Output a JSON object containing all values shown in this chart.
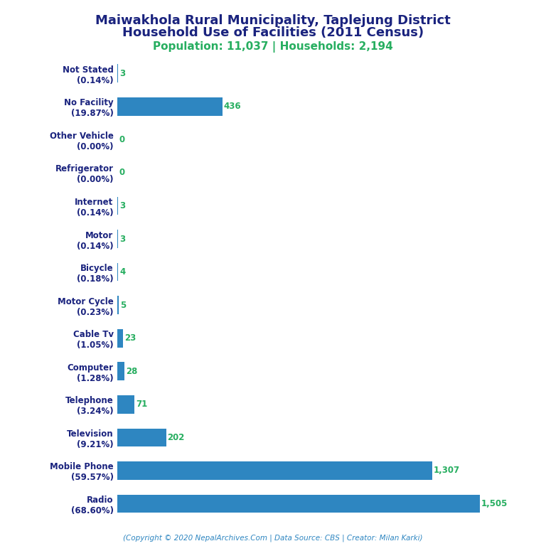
{
  "title_line1": "Maiwakhola Rural Municipality, Taplejung District",
  "title_line2": "Household Use of Facilities (2011 Census)",
  "subtitle": "Population: 11,037 | Households: 2,194",
  "footer": "(Copyright © 2020 NepalArchives.Com | Data Source: CBS | Creator: Milan Karki)",
  "categories": [
    "Radio\n(68.60%)",
    "Mobile Phone\n(59.57%)",
    "Television\n(9.21%)",
    "Telephone\n(3.24%)",
    "Computer\n(1.28%)",
    "Cable Tv\n(1.05%)",
    "Motor Cycle\n(0.23%)",
    "Bicycle\n(0.18%)",
    "Motor\n(0.14%)",
    "Internet\n(0.14%)",
    "Refrigerator\n(0.00%)",
    "Other Vehicle\n(0.00%)",
    "No Facility\n(19.87%)",
    "Not Stated\n(0.14%)"
  ],
  "values": [
    1505,
    1307,
    202,
    71,
    28,
    23,
    5,
    4,
    3,
    3,
    0,
    0,
    436,
    3
  ],
  "bar_color": "#2e86c1",
  "value_color": "#27ae60",
  "title_color": "#1a237e",
  "subtitle_color": "#27ae60",
  "footer_color": "#2e86c1",
  "bg_color": "#ffffff",
  "label_color": "#1a237e",
  "xlim": [
    0,
    1700
  ],
  "title_fontsize": 13,
  "subtitle_fontsize": 11,
  "label_fontsize": 8.5,
  "value_fontsize": 8.5,
  "footer_fontsize": 7.5,
  "bar_height": 0.55
}
